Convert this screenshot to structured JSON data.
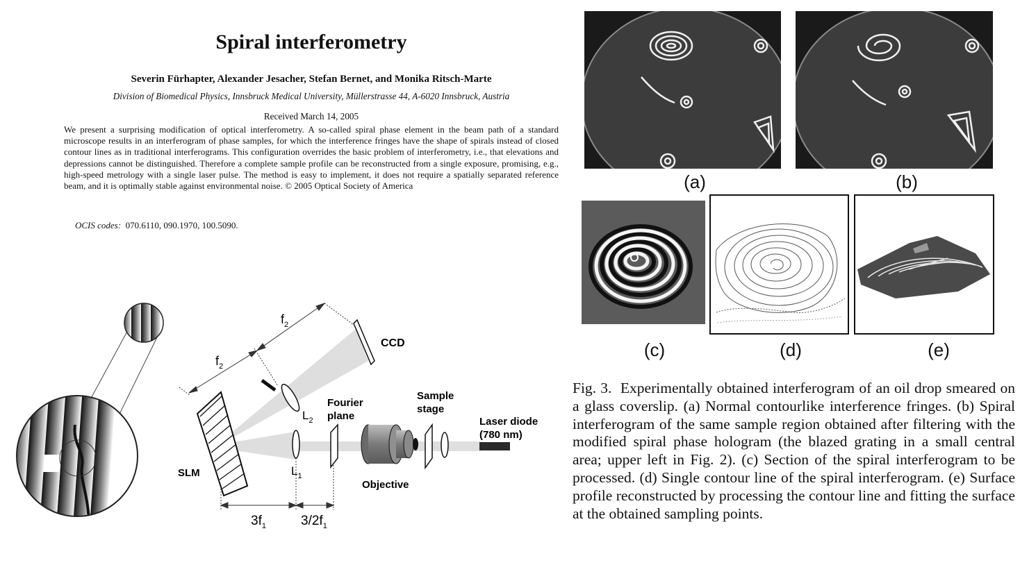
{
  "paper": {
    "title": "Spiral interferometry",
    "authors": "Severin Fürhapter, Alexander Jesacher, Stefan Bernet, and Monika Ritsch-Marte",
    "affiliation": "Division of Biomedical Physics, Innsbruck Medical University, Müllerstrasse 44, A-6020 Innsbruck, Austria",
    "received": "Received March 14, 2005",
    "abstract": "We present a surprising modification of optical interferometry. A so-called spiral phase element in the beam path of a standard microscope results in an interferogram of phase samples, for which the interference fringes have the shape of spirals instead of closed contour lines as in traditional interferograms. This configuration overrides the basic problem of interferometry, i.e., that elevations and depressions cannot be distinguished. Therefore a complete sample profile can be reconstructed from a single exposure, promising, e.g., high-speed metrology with a single laser pulse. The method is easy to implement, it does not require a spatially separated reference beam, and it is optimally stable against environmental noise. © 2005 Optical Society of America",
    "ocis_label": "OCIS codes:",
    "ocis_values": "070.6110, 090.1970, 100.5090."
  },
  "setup_diagram": {
    "ccd": "CCD",
    "f2_top": "f",
    "f2_top_sub": "2",
    "f2_left": "f",
    "f2_left_sub": "2",
    "l2": "L",
    "l2_sub": "2",
    "l1": "L",
    "l1_sub": "1",
    "fourier_1": "Fourier",
    "fourier_2": "plane",
    "sample_1": "Sample",
    "sample_2": "stage",
    "laser_1": "Laser diode",
    "laser_2": "(780 nm)",
    "slm": "SLM",
    "objective": "Objective",
    "dist1": "3f",
    "dist1_sub": "1",
    "dist2": "3/2f",
    "dist2_sub": "1"
  },
  "figure": {
    "panel_a": "(a)",
    "panel_b": "(b)",
    "panel_c": "(c)",
    "panel_d": "(d)",
    "panel_e": "(e)",
    "caption_label": "Fig. 3.",
    "caption_text": "Experimentally obtained interferogram of an oil drop smeared on a glass coverslip. (a) Normal contourlike interference fringes. (b) Spiral interferogram of the same sample region obtained after filtering with the modified spiral phase hologram (the blazed grating in a small central area; upper left in Fig. 2). (c) Section of the spiral interferogram to be processed. (d) Single contour line of the spiral interferogram. (e) Surface profile reconstructed by processing the contour line and fitting the surface at the obtained sampling points."
  }
}
